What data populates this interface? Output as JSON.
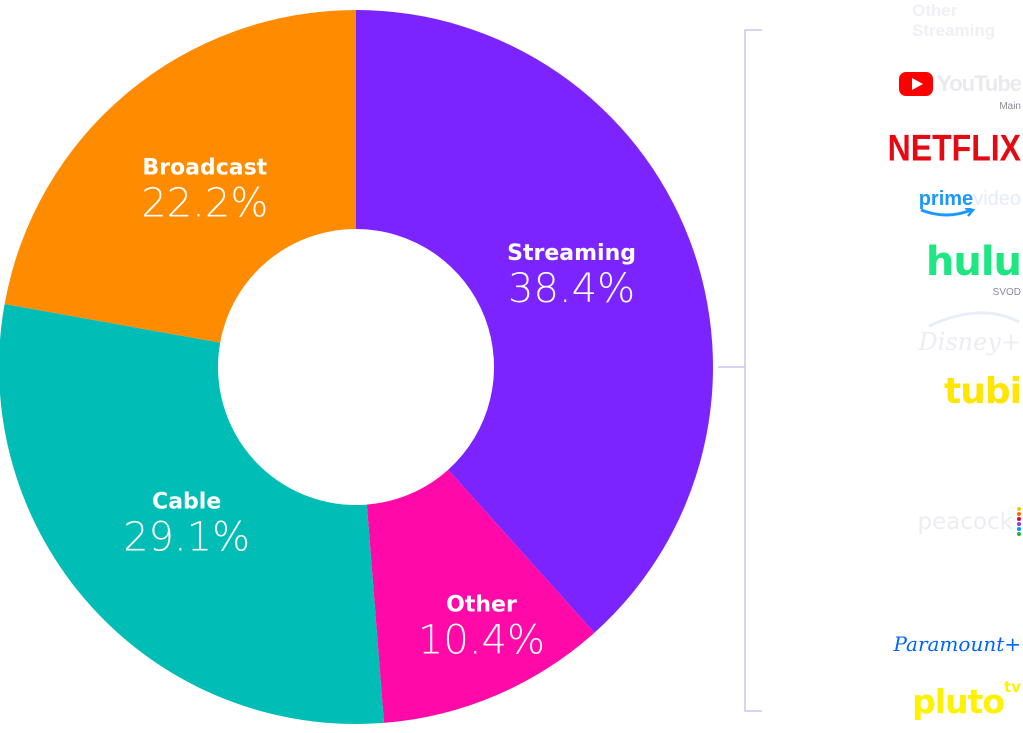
{
  "chart_data": {
    "type": "pie",
    "categories": [
      "Streaming",
      "Other",
      "Cable",
      "Broadcast"
    ],
    "values": [
      38.4,
      10.4,
      29.1,
      22.2
    ],
    "value_labels": [
      "38.4%",
      "10.4%",
      "29.1%",
      "22.2%"
    ],
    "colors": [
      "#7b24ff",
      "#ff0aa8",
      "#00bdb6",
      "#ff8c00"
    ],
    "style": "donut"
  },
  "legend": {
    "other_streaming_label": "Other Streaming",
    "brands": {
      "youtube": "YouTube",
      "youtube_sub": "Main",
      "netflix": "NETFLIX",
      "prime": "prime",
      "prime_video": "video",
      "hulu": "hulu",
      "hulu_sub": "SVOD",
      "disney": "Disney+",
      "tubi": "tubi",
      "peacock": "peacock",
      "paramount": "Paramount+",
      "pluto": "pluto",
      "pluto_tv": "tv"
    },
    "colors": {
      "netflix": "#e50914",
      "prime": "#1a98ff",
      "hulu": "#1ce783",
      "tubi": "#ffe600",
      "paramount": "#0064ff",
      "pluto": "#fff200",
      "youtube": "#ff0000",
      "bracket": "#c9c6ee"
    }
  }
}
